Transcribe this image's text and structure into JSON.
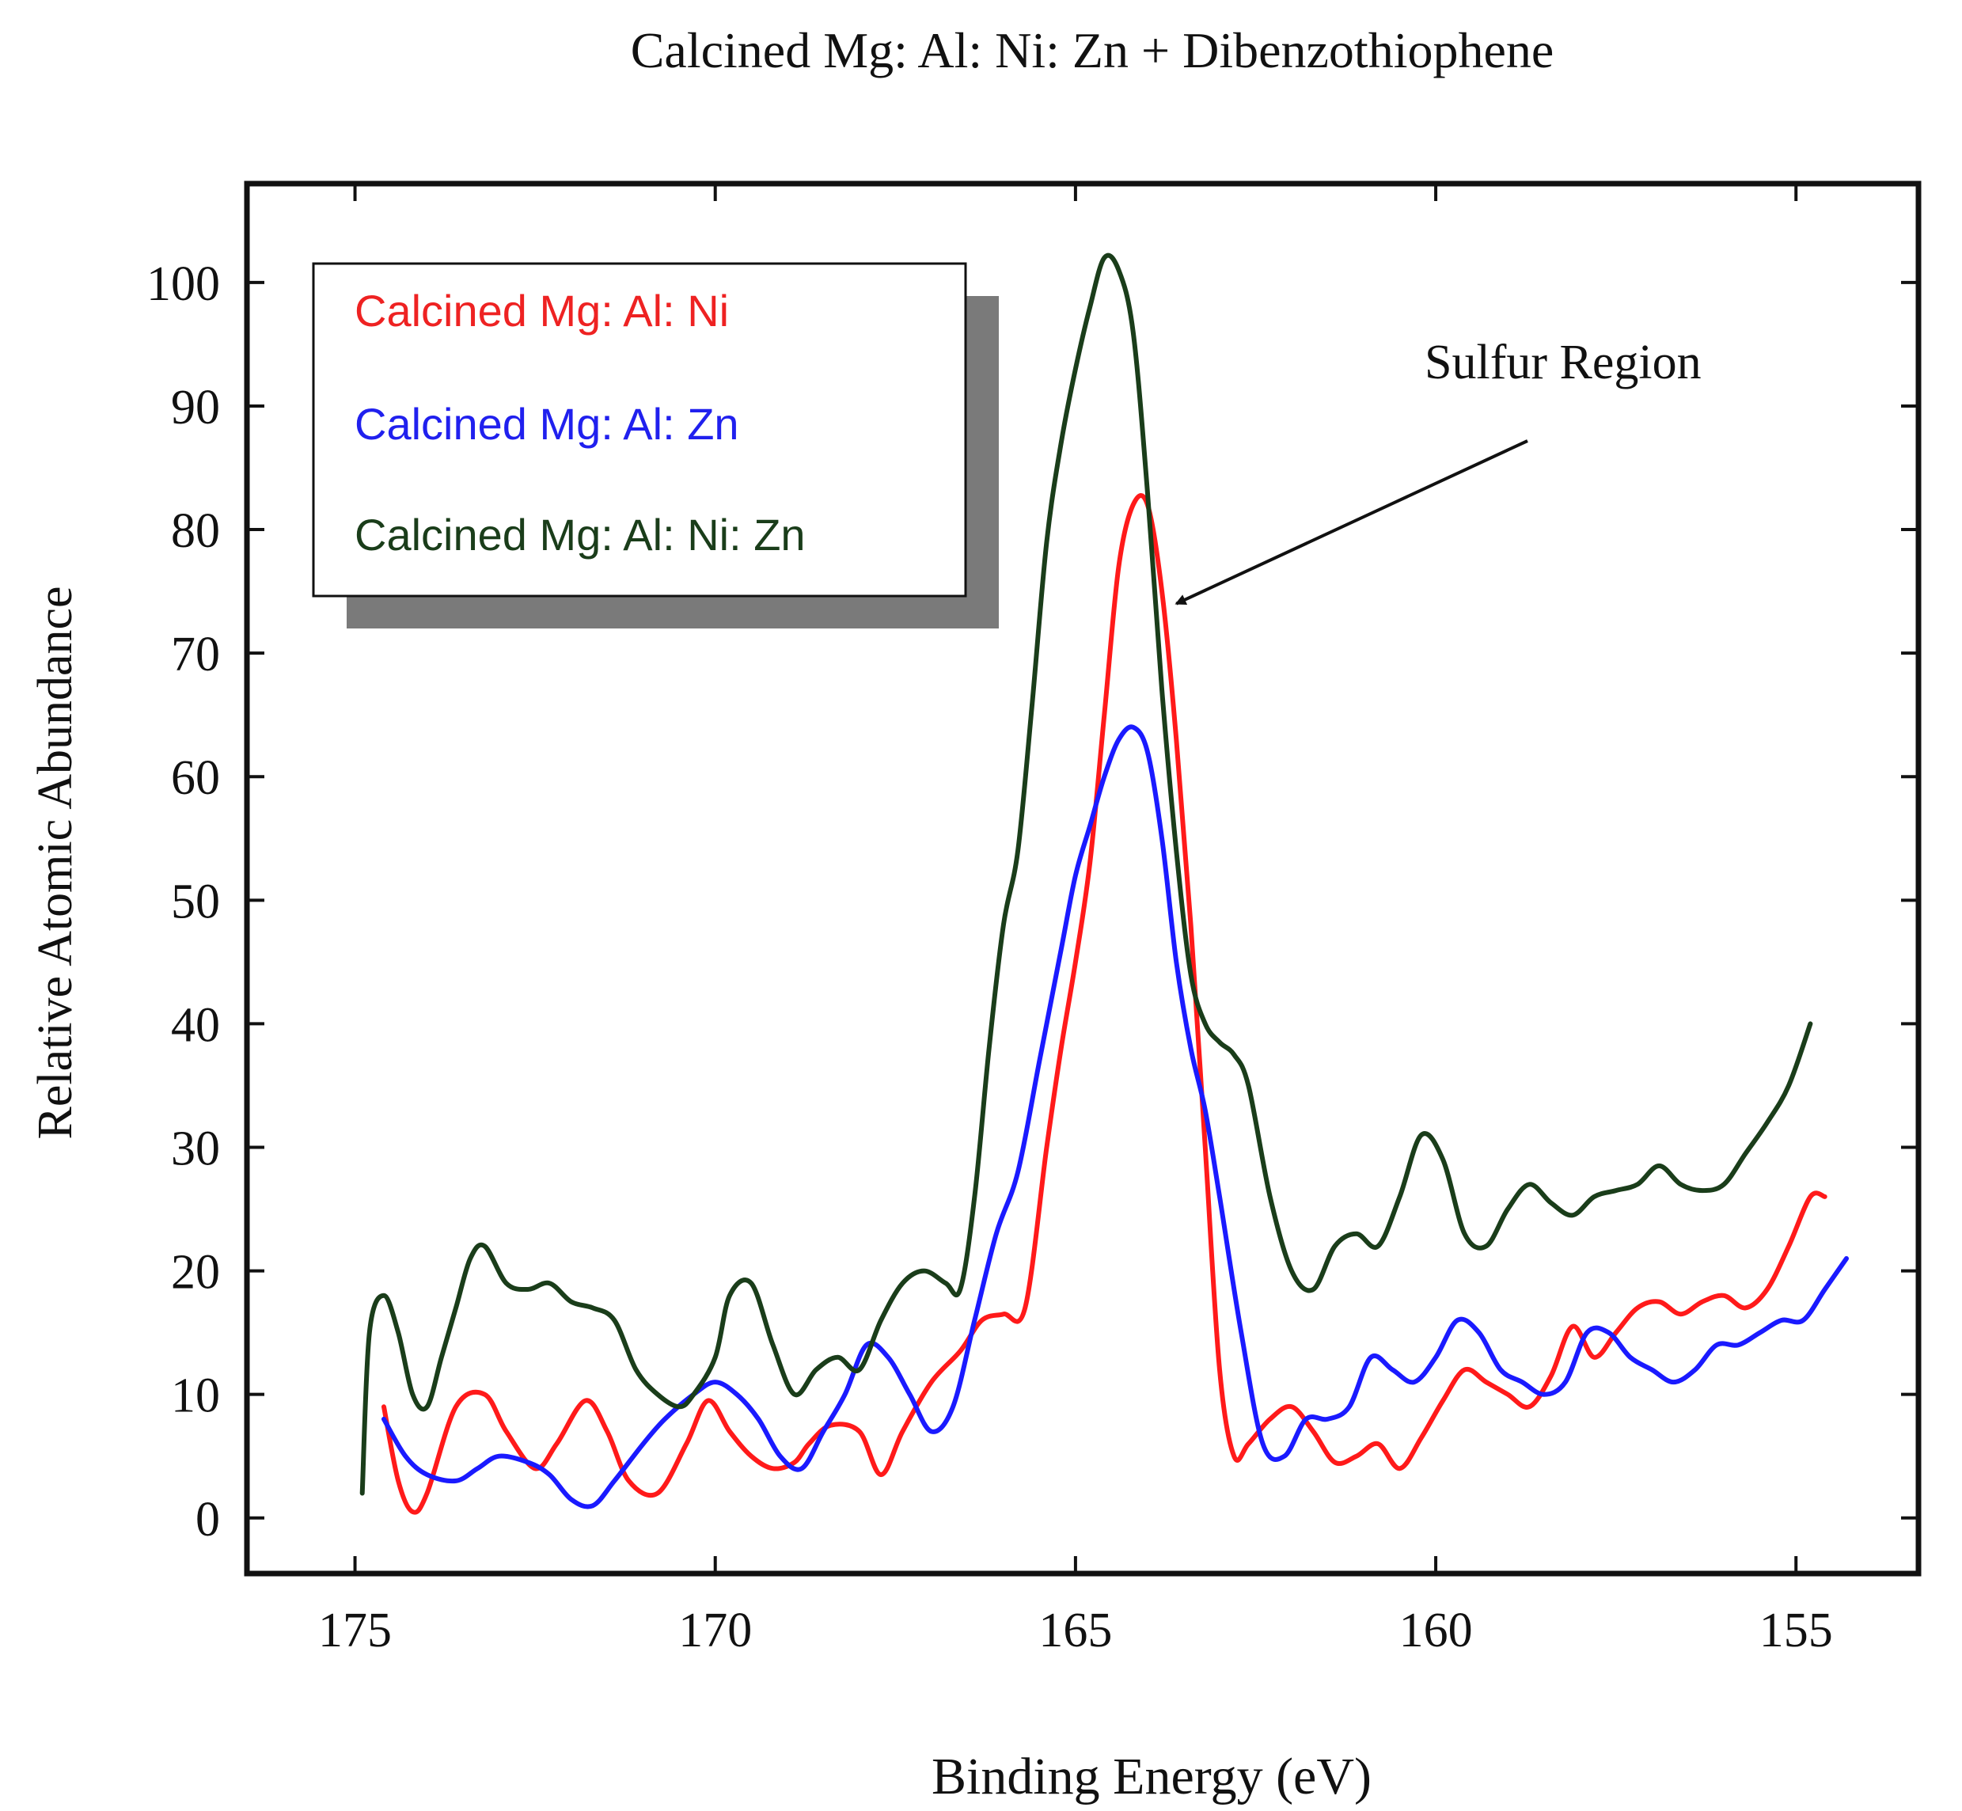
{
  "chart_data": {
    "type": "line",
    "title": "Calcined Mg: Al: Ni: Zn + Dibenzothiophene",
    "xlabel": "Binding Energy (eV)",
    "ylabel": "Relative Atomic Abundance",
    "xlim": [
      176.5,
      153.3
    ],
    "ylim": [
      -4.5,
      108
    ],
    "x_ticks": [
      175,
      170,
      165,
      160,
      155
    ],
    "x_tick_labels": [
      "175",
      "170",
      "165",
      "160",
      "155"
    ],
    "y_ticks": [
      0,
      10,
      20,
      30,
      40,
      50,
      60,
      70,
      80,
      90,
      100
    ],
    "y_tick_labels": [
      "0",
      "10",
      "20",
      "30",
      "40",
      "50",
      "60",
      "70",
      "80",
      "90",
      "100"
    ],
    "legend": {
      "position": "top-left",
      "entries": [
        "Calcined Mg: Al: Ni",
        "Calcined Mg: Al: Zn",
        "Calcined Mg: Al: Ni: Zn"
      ]
    },
    "annotation": {
      "text": "Sulfur Region",
      "points_to": [
        163.6,
        74.0
      ]
    },
    "series": [
      {
        "name": "Calcined Mg: Al: Ni",
        "color": "#ff1a1a",
        "x": [
          174.6,
          174.4,
          174.2,
          174.0,
          173.6,
          173.2,
          172.9,
          172.5,
          172.2,
          171.8,
          171.5,
          171.2,
          170.8,
          170.4,
          170.1,
          169.8,
          169.5,
          169.2,
          168.9,
          168.7,
          168.4,
          168.0,
          167.7,
          167.4,
          167.0,
          166.6,
          166.3,
          166.0,
          165.7,
          165.4,
          165.2,
          165.0,
          164.8,
          164.6,
          164.4,
          164.2,
          164.0,
          163.8,
          163.6,
          163.4,
          163.2,
          163.0,
          162.8,
          162.6,
          162.3,
          162.0,
          161.7,
          161.4,
          161.1,
          160.8,
          160.5,
          160.2,
          159.9,
          159.6,
          159.3,
          159.0,
          158.7,
          158.4,
          158.1,
          157.8,
          157.5,
          157.2,
          156.9,
          156.6,
          156.3,
          156.0,
          155.7,
          155.4,
          155.1,
          154.8,
          154.6
        ],
        "y": [
          9,
          3,
          0.5,
          2,
          9,
          10,
          7,
          4,
          6,
          9.5,
          7,
          3,
          2,
          6,
          9.5,
          7,
          5,
          4,
          4.5,
          6,
          7.5,
          7,
          3.5,
          7,
          11,
          13.5,
          16,
          16.5,
          17,
          30,
          38,
          45,
          53,
          65,
          77,
          82,
          82,
          75,
          63,
          48,
          30,
          12,
          5,
          6,
          8,
          9,
          7,
          4.5,
          5,
          6,
          4,
          6.5,
          9.5,
          12,
          11,
          10,
          9,
          11.5,
          15.5,
          13,
          15,
          17,
          17.5,
          16.5,
          17.5,
          18,
          17,
          18.5,
          22,
          26,
          26
        ]
      },
      {
        "name": "Calcined Mg: Al: Zn",
        "color": "#1a1aff",
        "x": [
          174.6,
          174.3,
          174.0,
          173.6,
          173.3,
          173.0,
          172.6,
          172.3,
          172.0,
          171.7,
          171.4,
          171.0,
          170.7,
          170.3,
          170.0,
          169.7,
          169.4,
          169.1,
          168.8,
          168.5,
          168.2,
          167.9,
          167.6,
          167.3,
          167.0,
          166.7,
          166.4,
          166.1,
          165.8,
          165.5,
          165.2,
          165.0,
          164.8,
          164.6,
          164.4,
          164.2,
          164.0,
          163.8,
          163.6,
          163.4,
          163.2,
          163.0,
          162.7,
          162.4,
          162.1,
          161.8,
          161.5,
          161.2,
          160.9,
          160.6,
          160.3,
          160.0,
          159.7,
          159.4,
          159.1,
          158.8,
          158.5,
          158.2,
          157.9,
          157.6,
          157.3,
          157.0,
          156.7,
          156.4,
          156.1,
          155.8,
          155.5,
          155.2,
          154.9,
          154.6,
          154.3
        ],
        "y": [
          8,
          5,
          3.5,
          3,
          4,
          5,
          4.5,
          3.5,
          1.5,
          1,
          3,
          6,
          8,
          10,
          11,
          10,
          8,
          5,
          4,
          7,
          10,
          14,
          13,
          10,
          7,
          9,
          16,
          23,
          28,
          37,
          46,
          52,
          56,
          60,
          63,
          64,
          62,
          55,
          45,
          38,
          33,
          26,
          15,
          6,
          5,
          8,
          8,
          9,
          13,
          12,
          11,
          13,
          16,
          15,
          12,
          11,
          10,
          11,
          15,
          15,
          13,
          12,
          11,
          12,
          14,
          14,
          15,
          16,
          16,
          18.5,
          21
        ]
      },
      {
        "name": "Calcined Mg: Al: Ni: Zn",
        "color": "#1a3d1a",
        "x": [
          174.9,
          174.8,
          174.6,
          174.4,
          174.2,
          174.0,
          173.8,
          173.6,
          173.4,
          173.2,
          172.9,
          172.6,
          172.3,
          172.0,
          171.7,
          171.4,
          171.1,
          170.8,
          170.5,
          170.3,
          170.0,
          169.8,
          169.5,
          169.2,
          168.9,
          168.6,
          168.3,
          168.0,
          167.7,
          167.4,
          167.1,
          166.8,
          166.6,
          166.4,
          166.2,
          166.0,
          165.8,
          165.6,
          165.4,
          165.2,
          165.0,
          164.8,
          164.6,
          164.4,
          164.2,
          164.0,
          163.8,
          163.6,
          163.4,
          163.2,
          163.0,
          162.8,
          162.6,
          162.3,
          162.0,
          161.7,
          161.4,
          161.1,
          160.8,
          160.5,
          160.2,
          159.9,
          159.6,
          159.3,
          159.0,
          158.7,
          158.4,
          158.1,
          157.8,
          157.5,
          157.2,
          156.9,
          156.6,
          156.3,
          156.0,
          155.7,
          155.4,
          155.1,
          154.8
        ],
        "y": [
          2,
          15,
          18,
          15,
          10,
          9,
          13,
          17,
          21,
          22,
          19,
          18.5,
          19,
          17.5,
          17,
          16,
          12,
          10,
          9,
          10,
          13,
          18,
          19,
          14,
          10,
          12,
          13,
          12,
          16,
          19,
          20,
          19,
          18.5,
          26,
          38,
          48,
          54,
          66,
          79,
          87,
          93,
          98,
          102,
          101,
          96,
          83,
          67,
          54,
          44,
          40,
          38.5,
          37.5,
          35,
          26,
          20,
          18.5,
          22,
          23,
          22,
          26,
          31,
          29,
          23,
          22,
          25,
          27,
          25.5,
          24.5,
          26,
          26.5,
          27,
          28.5,
          27,
          26.5,
          27,
          29.5,
          32,
          35,
          40
        ]
      }
    ]
  }
}
